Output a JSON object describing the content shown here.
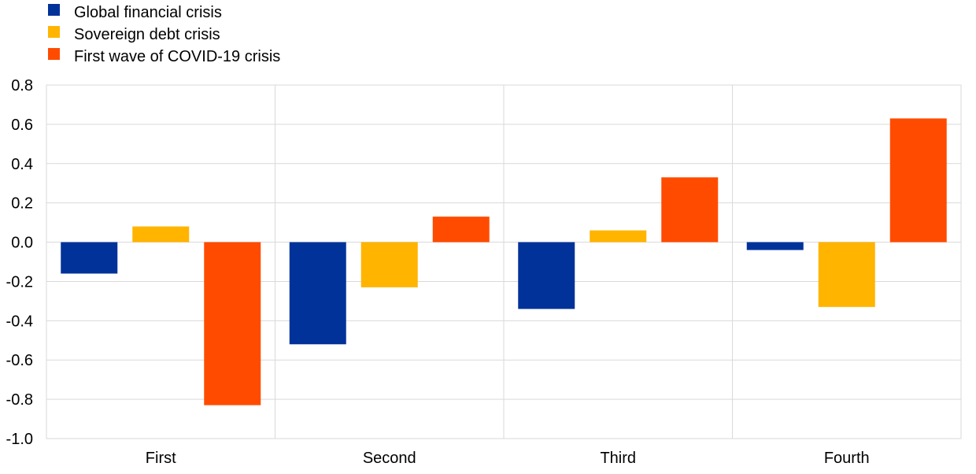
{
  "chart_data": {
    "type": "bar",
    "title": "",
    "xlabel": "",
    "ylabel": "",
    "categories": [
      "First",
      "Second",
      "Third",
      "Fourth"
    ],
    "series": [
      {
        "name": "Global financial crisis",
        "color": "#003299",
        "values": [
          -0.16,
          -0.52,
          -0.34,
          -0.04
        ]
      },
      {
        "name": "Sovereign debt crisis",
        "color": "#FFB400",
        "values": [
          0.08,
          -0.23,
          0.06,
          -0.33
        ]
      },
      {
        "name": "First wave of COVID-19 crisis",
        "color": "#FF4B00",
        "values": [
          -0.83,
          0.13,
          0.33,
          0.63
        ]
      }
    ],
    "ylim": [
      -1.0,
      0.8
    ],
    "yticks": [
      "0.8",
      "0.6",
      "0.4",
      "0.2",
      "0.0",
      "-0.2",
      "-0.4",
      "-0.6",
      "-0.8",
      "-1.0"
    ],
    "grid": true,
    "legend_position": "top-left"
  }
}
